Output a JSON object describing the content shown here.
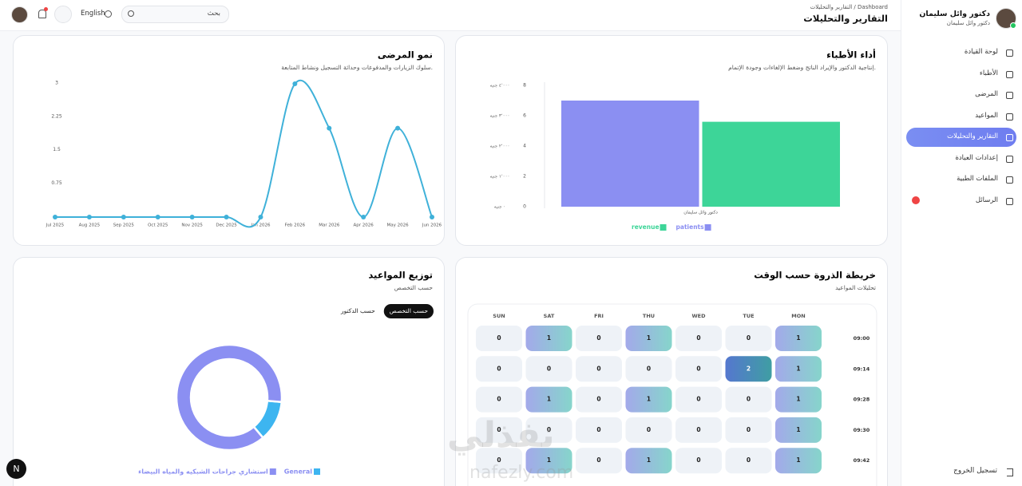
{
  "header": {
    "breadcrumb_root": "Dashboard",
    "breadcrumb_current": "التقارير والتحليلات",
    "title": "التقارير والتحليلات",
    "search_placeholder": "بحث",
    "language": "English"
  },
  "sidebar": {
    "user_name": "دكتور وائل سليمان",
    "user_role": "دكتور وائل سليمان",
    "menu": [
      {
        "label": "لوحة القيادة"
      },
      {
        "label": "الأطباء"
      },
      {
        "label": "المرضى"
      },
      {
        "label": "المواعيد"
      },
      {
        "label": "التقارير والتحليلات",
        "active": true
      },
      {
        "label": "إعدادات العيادة"
      },
      {
        "label": "الملفات الطبية"
      },
      {
        "label": "الرسائل"
      }
    ],
    "logout": "تسجيل الخروج"
  },
  "floating_button": "N",
  "watermark": {
    "arabic": "نفذلي",
    "latin": "nafezly.com"
  },
  "chart_data": [
    {
      "type": "line",
      "title": "نمو المرضى",
      "subtitle": "سلوك الزيارات والمدفوعات وحداثة التسجيل ونشاط المتابعة.",
      "categories": [
        "Jul 2025",
        "Aug 2025",
        "Sep 2025",
        "Oct 2025",
        "Nov 2025",
        "Dec 2025",
        "Jan 2026",
        "Feb 2026",
        "Mar 2026",
        "Apr 2026",
        "May 2026",
        "Jun 2026"
      ],
      "values": [
        0,
        0,
        0,
        0,
        0,
        0,
        0,
        3,
        2,
        0,
        2,
        0
      ],
      "color": "#3fb1d9",
      "ylim": [
        0,
        3
      ],
      "yticks": [
        0.75,
        1.5,
        2.25,
        3
      ]
    },
    {
      "type": "bar",
      "title": "أداء الأطباء",
      "subtitle": "إنتاجية الدكتور والإيراد الناتج وضغط الإلغاءات وجودة الإتمام.",
      "categories": [
        "دكتور وائل سليمان"
      ],
      "series": [
        {
          "name": "patients",
          "color": "#8b8ff2",
          "values": [
            7
          ],
          "axis": "y2"
        },
        {
          "name": "revenue",
          "color": "#3dd598",
          "values": [
            2800
          ]
        }
      ],
      "ylim": [
        0,
        4000
      ],
      "yticks": [
        {
          "value": 0,
          "label": "٠ جنيه"
        },
        {
          "value": 1000,
          "label": "١٬٠٠٠ جنيه"
        },
        {
          "value": 2000,
          "label": "٢٬٠٠٠ جنيه"
        },
        {
          "value": 3000,
          "label": "٣٬٠٠٠ جنيه"
        },
        {
          "value": 4000,
          "label": "٤٬٠٠٠ جنيه"
        }
      ],
      "y2lim": [
        0,
        8
      ],
      "y2ticks": [
        0,
        2,
        4,
        6,
        8
      ]
    },
    {
      "type": "pie",
      "title": "توزيع المواعيد",
      "subtitle": "حسب التخصص",
      "filters": [
        {
          "label": "حسب التخصص",
          "active": true
        },
        {
          "label": "حسب الدكتور"
        }
      ],
      "categories": [
        "General",
        "استشاري جراحات الشبكيه والمياه البيضاء"
      ],
      "values": [
        1,
        7
      ],
      "colors": [
        "#3db5f0",
        "#8b8ff2"
      ]
    },
    {
      "type": "heatmap",
      "title": "خريطة الذروة حسب الوقت",
      "subtitle": "تحليلات المواعيد",
      "x": [
        "MON",
        "TUE",
        "WED",
        "THU",
        "FRI",
        "SAT",
        "SUN"
      ],
      "y": [
        "09:00",
        "09:14",
        "09:28",
        "09:30",
        "09:42"
      ],
      "values": [
        [
          1,
          0,
          0,
          1,
          0,
          1,
          0
        ],
        [
          1,
          2,
          0,
          0,
          0,
          0,
          0
        ],
        [
          1,
          0,
          0,
          1,
          0,
          1,
          0
        ],
        [
          1,
          0,
          0,
          0,
          0,
          0,
          0
        ],
        [
          1,
          0,
          0,
          1,
          0,
          1,
          0
        ]
      ]
    }
  ]
}
